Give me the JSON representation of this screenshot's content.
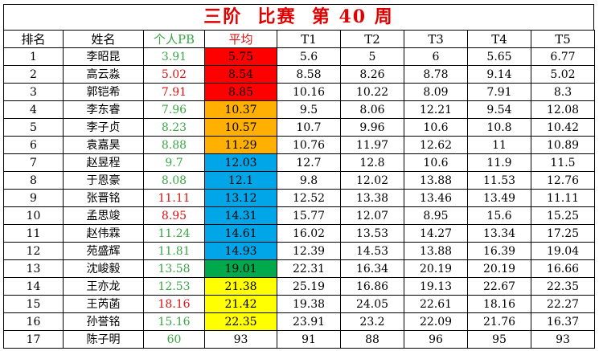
{
  "title": "三阶  比赛  第 40 周",
  "headers": [
    "排名",
    "姓名",
    "个人PB",
    "平均",
    "T1",
    "T2",
    "T3",
    "T4",
    "T5"
  ],
  "rows": [
    {
      "rank": "1",
      "name": "李昭昆",
      "pb": "3.91",
      "pb_color": "green",
      "avg": "5.75",
      "avg_bg": "red",
      "t": [
        "5.6",
        "5",
        "6",
        "5.65",
        "6.77"
      ]
    },
    {
      "rank": "2",
      "name": "高云淼",
      "pb": "5.02",
      "pb_color": "red",
      "avg": "8.54",
      "avg_bg": "red",
      "t": [
        "8.58",
        "8.26",
        "8.78",
        "9.14",
        "5.02"
      ]
    },
    {
      "rank": "3",
      "name": "郭铠希",
      "pb": "7.91",
      "pb_color": "red",
      "avg": "8.85",
      "avg_bg": "red",
      "t": [
        "10.16",
        "10.22",
        "8.09",
        "7.91",
        "8.3"
      ]
    },
    {
      "rank": "4",
      "name": "李东睿",
      "pb": "7.96",
      "pb_color": "green",
      "avg": "10.37",
      "avg_bg": "orange",
      "t": [
        "9.5",
        "8.06",
        "12.21",
        "9.54",
        "12.08"
      ]
    },
    {
      "rank": "5",
      "name": "李子贞",
      "pb": "8.23",
      "pb_color": "green",
      "avg": "10.57",
      "avg_bg": "orange",
      "t": [
        "10.7",
        "9.96",
        "10.6",
        "10.8",
        "10.42"
      ]
    },
    {
      "rank": "6",
      "name": "袁嘉昊",
      "pb": "8.88",
      "pb_color": "green",
      "avg": "11.29",
      "avg_bg": "orange",
      "t": [
        "10.76",
        "11.97",
        "12.62",
        "11",
        "10.89"
      ]
    },
    {
      "rank": "7",
      "name": "赵昱程",
      "pb": "9.7",
      "pb_color": "green",
      "avg": "12.03",
      "avg_bg": "blue",
      "t": [
        "12.7",
        "12.8",
        "10.6",
        "11.9",
        "11.5"
      ]
    },
    {
      "rank": "8",
      "name": "于恩豪",
      "pb": "8.08",
      "pb_color": "green",
      "avg": "12.1",
      "avg_bg": "blue",
      "t": [
        "9.8",
        "12.02",
        "13.88",
        "11.53",
        "12.76"
      ]
    },
    {
      "rank": "9",
      "name": "张晋铭",
      "pb": "11.11",
      "pb_color": "red",
      "avg": "13.12",
      "avg_bg": "blue",
      "t": [
        "12.52",
        "13.38",
        "13.46",
        "13.49",
        "11.11"
      ]
    },
    {
      "rank": "10",
      "name": "孟思竣",
      "pb": "8.95",
      "pb_color": "red",
      "avg": "14.31",
      "avg_bg": "blue",
      "t": [
        "15.77",
        "12.07",
        "8.95",
        "15.6",
        "15.25"
      ]
    },
    {
      "rank": "11",
      "name": "赵伟霖",
      "pb": "11.24",
      "pb_color": "green",
      "avg": "14.61",
      "avg_bg": "blue",
      "t": [
        "16.02",
        "13.53",
        "14.27",
        "13.34",
        "17.25"
      ]
    },
    {
      "rank": "12",
      "name": "苑盛辉",
      "pb": "11.81",
      "pb_color": "green",
      "avg": "14.93",
      "avg_bg": "blue",
      "t": [
        "12.39",
        "14.53",
        "13.88",
        "16.39",
        "19.04"
      ]
    },
    {
      "rank": "13",
      "name": "沈峻毅",
      "pb": "13.58",
      "pb_color": "green",
      "avg": "19.01",
      "avg_bg": "green",
      "t": [
        "22.31",
        "16.34",
        "20.19",
        "20.19",
        "16.66"
      ]
    },
    {
      "rank": "14",
      "name": "王亦龙",
      "pb": "12.53",
      "pb_color": "green",
      "avg": "21.38",
      "avg_bg": "yellow",
      "t": [
        "25.19",
        "16.86",
        "19.13",
        "22.67",
        "22.35"
      ]
    },
    {
      "rank": "15",
      "name": "王芮菡",
      "pb": "18.16",
      "pb_color": "red",
      "avg": "21.42",
      "avg_bg": "yellow",
      "t": [
        "19.38",
        "24.05",
        "22.61",
        "18.16",
        "22.27"
      ]
    },
    {
      "rank": "16",
      "name": "孙誉铭",
      "pb": "15.16",
      "pb_color": "green",
      "avg": "22.35",
      "avg_bg": "yellow",
      "t": [
        "23.91",
        "23.2",
        "22.09",
        "21.76",
        "16.37"
      ]
    },
    {
      "rank": "17",
      "name": "陈子明",
      "pb": "60",
      "pb_color": "green",
      "avg": "93",
      "avg_bg": "none",
      "t": [
        "91",
        "88",
        "96",
        "95",
        "93"
      ]
    }
  ],
  "colors": {
    "title": "#e00000",
    "pb_green": "#3aa845",
    "pb_red": "#e01010",
    "avg_red": "#ff0000",
    "avg_orange": "#ffb000",
    "avg_blue": "#00a6e8",
    "avg_green": "#00a94c",
    "avg_yellow": "#ffff00"
  }
}
